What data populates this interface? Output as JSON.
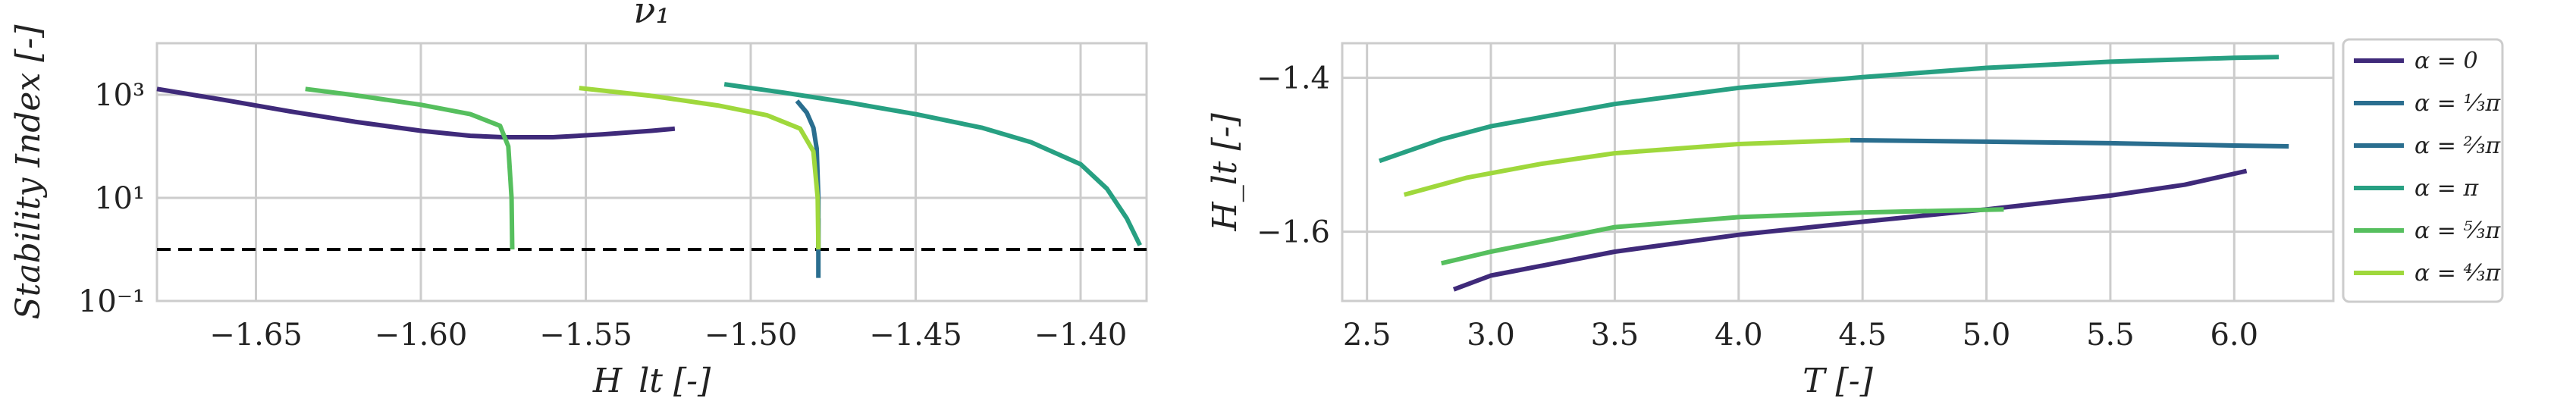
{
  "chart_data": [
    {
      "type": "line",
      "title": "ν₁",
      "xlabel": "H_lt [-]",
      "ylabel": "Stability Index [-]",
      "xlim": [
        -1.68,
        -1.38
      ],
      "ylim": [
        0.1,
        10000
      ],
      "yscale": "log",
      "grid": true,
      "xticks": [
        -1.65,
        -1.6,
        -1.55,
        -1.5,
        -1.45,
        -1.4
      ],
      "xtick_labels": [
        "−1.65",
        "−1.60",
        "−1.55",
        "−1.50",
        "−1.45",
        "−1.40"
      ],
      "yticks": [
        0.1,
        10,
        1000
      ],
      "ytick_labels": [
        "10⁻¹",
        "10¹",
        "10³"
      ],
      "reference_line": {
        "y": 1,
        "style": "dashed",
        "color": "#000000"
      },
      "series": [
        {
          "name": "α = 0",
          "color": "#3f2a7a",
          "points": [
            [
              -1.68,
              1300
            ],
            [
              -1.66,
              800
            ],
            [
              -1.64,
              480
            ],
            [
              -1.62,
              300
            ],
            [
              -1.6,
              200
            ],
            [
              -1.585,
              160
            ],
            [
              -1.575,
              150
            ],
            [
              -1.56,
              150
            ],
            [
              -1.545,
              170
            ],
            [
              -1.53,
              200
            ],
            [
              -1.523,
              220
            ]
          ]
        },
        {
          "name": "α = ⅓π",
          "color": "#2a6e8f",
          "points": [
            [
              -1.486,
              760
            ],
            [
              -1.483,
              450
            ],
            [
              -1.481,
              230
            ],
            [
              -1.48,
              90
            ],
            [
              -1.4795,
              10
            ],
            [
              -1.4795,
              0.5
            ],
            [
              -1.4795,
              0.28
            ]
          ]
        },
        {
          "name": "α = ⅔π",
          "color": "#2a6e8f",
          "points": [
            [
              -1.4795,
              1.0
            ],
            [
              -1.4795,
              4
            ]
          ]
        },
        {
          "name": "α = π",
          "color": "#27a082",
          "points": [
            [
              -1.508,
              1600
            ],
            [
              -1.49,
              1100
            ],
            [
              -1.47,
              700
            ],
            [
              -1.45,
              420
            ],
            [
              -1.43,
              230
            ],
            [
              -1.415,
              120
            ],
            [
              -1.4,
              45
            ],
            [
              -1.392,
              15
            ],
            [
              -1.386,
              4
            ],
            [
              -1.382,
              1.2
            ]
          ]
        },
        {
          "name": "α = ⁵⁄₃π",
          "color": "#56bf5e",
          "points": [
            [
              -1.635,
              1300
            ],
            [
              -1.62,
              980
            ],
            [
              -1.6,
              640
            ],
            [
              -1.585,
              420
            ],
            [
              -1.576,
              250
            ],
            [
              -1.5735,
              100
            ],
            [
              -1.5725,
              10
            ],
            [
              -1.5723,
              1
            ]
          ]
        },
        {
          "name": "α = ⁴⁄₃π",
          "color": "#9fd83c",
          "points": [
            [
              -1.552,
              1350
            ],
            [
              -1.53,
              950
            ],
            [
              -1.51,
              620
            ],
            [
              -1.495,
              400
            ],
            [
              -1.485,
              220
            ],
            [
              -1.481,
              80
            ],
            [
              -1.4797,
              10
            ],
            [
              -1.4795,
              1
            ]
          ]
        }
      ]
    },
    {
      "type": "line",
      "title": "",
      "xlabel": "T [-]",
      "ylabel": "H_lt [-]",
      "xlim": [
        2.4,
        6.4
      ],
      "ylim": [
        -1.69,
        -1.355
      ],
      "grid": true,
      "xticks": [
        2.5,
        3.0,
        3.5,
        4.0,
        4.5,
        5.0,
        5.5,
        6.0
      ],
      "xtick_labels": [
        "2.5",
        "3.0",
        "3.5",
        "4.0",
        "4.5",
        "5.0",
        "5.5",
        "6.0"
      ],
      "yticks": [
        -1.4,
        -1.6
      ],
      "ytick_labels": [
        "−1.4",
        "−1.6"
      ],
      "legend": {
        "placement": "outside-right",
        "entries": [
          "α = 0",
          "α = ⅓π",
          "α = ⅔π",
          "α = π",
          "α = ⁵⁄₃π",
          "α = ⁴⁄₃π"
        ]
      },
      "series": [
        {
          "name": "α = 0",
          "color": "#3f2a7a",
          "points": [
            [
              2.85,
              -1.675
            ],
            [
              3.0,
              -1.657
            ],
            [
              3.5,
              -1.626
            ],
            [
              4.0,
              -1.604
            ],
            [
              4.5,
              -1.587
            ],
            [
              5.0,
              -1.571
            ],
            [
              5.5,
              -1.553
            ],
            [
              5.8,
              -1.539
            ],
            [
              6.05,
              -1.521
            ]
          ]
        },
        {
          "name": "α = ⅓π",
          "color": "#2a6e8f",
          "points": [
            [
              4.45,
              -1.481
            ],
            [
              5.0,
              -1.483
            ],
            [
              5.5,
              -1.485
            ],
            [
              6.0,
              -1.488
            ],
            [
              6.22,
              -1.489
            ]
          ]
        },
        {
          "name": "α = π",
          "color": "#27a082",
          "points": [
            [
              2.55,
              -1.508
            ],
            [
              2.8,
              -1.48
            ],
            [
              3.0,
              -1.463
            ],
            [
              3.5,
              -1.434
            ],
            [
              4.0,
              -1.413
            ],
            [
              4.5,
              -1.399
            ],
            [
              5.0,
              -1.387
            ],
            [
              5.5,
              -1.379
            ],
            [
              6.0,
              -1.374
            ],
            [
              6.18,
              -1.373
            ]
          ]
        },
        {
          "name": "α = ⁵⁄₃π",
          "color": "#56bf5e",
          "points": [
            [
              2.8,
              -1.641
            ],
            [
              3.0,
              -1.626
            ],
            [
              3.5,
              -1.594
            ],
            [
              4.0,
              -1.581
            ],
            [
              4.5,
              -1.575
            ],
            [
              5.07,
              -1.571
            ]
          ]
        },
        {
          "name": "α = ⁴⁄₃π",
          "color": "#9fd83c",
          "points": [
            [
              2.65,
              -1.552
            ],
            [
              2.9,
              -1.53
            ],
            [
              3.2,
              -1.512
            ],
            [
              3.5,
              -1.498
            ],
            [
              4.0,
              -1.486
            ],
            [
              4.45,
              -1.481
            ]
          ]
        }
      ]
    }
  ]
}
